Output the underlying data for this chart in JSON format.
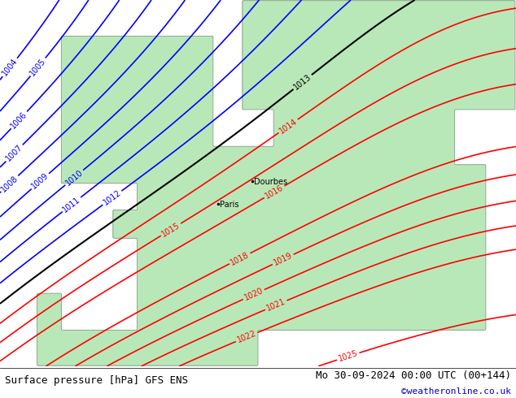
{
  "title_left": "Surface pressure [hPa] GFS ENS",
  "title_right": "Mo 30-09-2024 00:00 UTC (00+144)",
  "title_right2": "©weatheronline.co.uk",
  "bg_color": "#d0d0d0",
  "land_color": "#b8e8b8",
  "sea_color": "#d0d0d0",
  "blue_contour_color": "#0000ff",
  "black_contour_color": "#000000",
  "red_contour_color": "#ff0000",
  "footer_bg": "#ffffff",
  "pressure_min": 1004,
  "pressure_max": 1025,
  "blue_levels": [
    1004,
    1005,
    1006,
    1007,
    1008,
    1009,
    1010,
    1011,
    1012
  ],
  "black_levels": [
    1013
  ],
  "red_levels": [
    1014,
    1015,
    1016,
    1018,
    1019,
    1020,
    1021,
    1022,
    1025
  ],
  "fontsize_footer": 9,
  "fontsize_title": 9
}
